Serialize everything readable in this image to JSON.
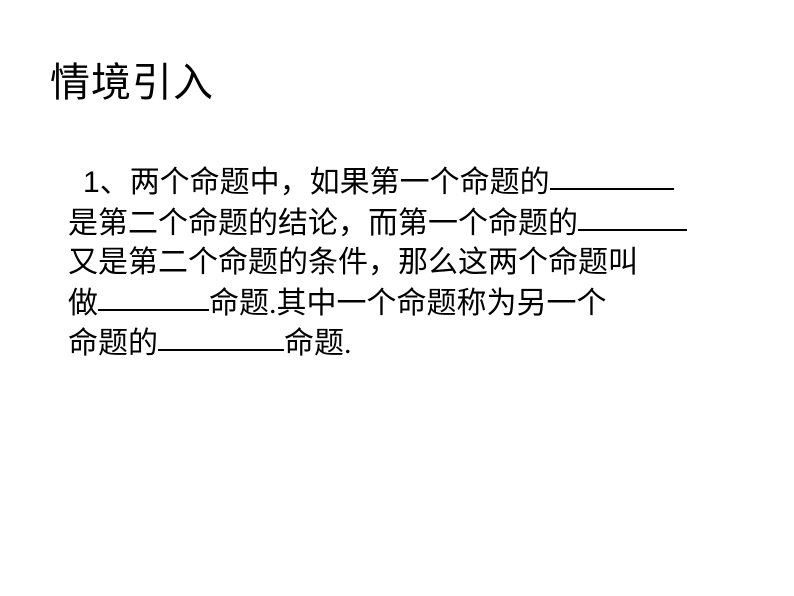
{
  "slide": {
    "title": "情境引入",
    "background_color": "#ffffff",
    "title_fontsize": 40,
    "content_fontsize": 30,
    "text_color": "#000000",
    "content": {
      "item_number": "1",
      "separator": "、",
      "line1_part1": "两个命题中，如果第一个命题的",
      "line2_part1": "是第二个命题的结论，而第一个命题的",
      "line3_part1": "又是第二个命题的条件，那么这两个命题叫",
      "line4_part1": "做",
      "line4_part2": "命题.其中一个命题称为另一个",
      "line5_part1": "命题的",
      "line5_part2": "命题.",
      "blanks": [
        {
          "width": 124
        },
        {
          "width": 109
        },
        {
          "width": 111
        },
        {
          "width": 126
        }
      ]
    }
  }
}
